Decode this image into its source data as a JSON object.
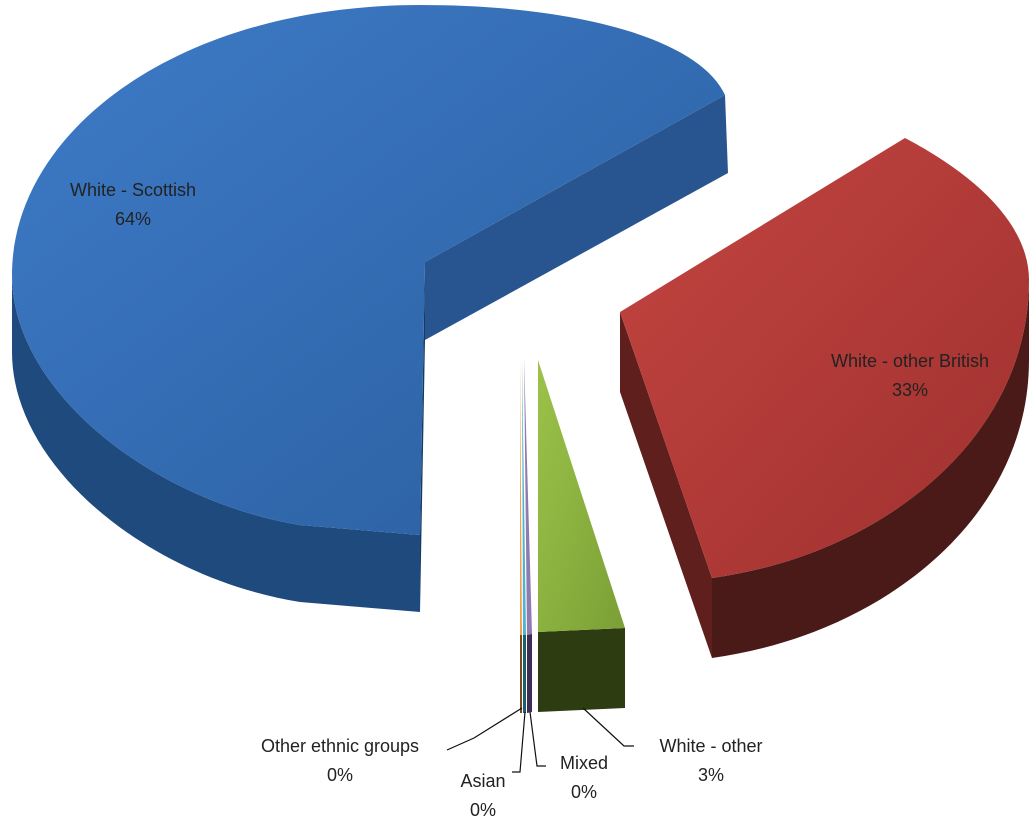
{
  "chart_data": {
    "type": "pie",
    "categories": [
      "White - Scottish",
      "White - other British",
      "White - other",
      "Mixed",
      "Asian",
      "Other ethnic groups"
    ],
    "values": [
      64,
      33,
      3,
      0,
      0,
      0
    ],
    "series": [
      {
        "values": [
          64,
          33,
          3,
          0,
          0,
          0
        ]
      }
    ],
    "slices": [
      {
        "name": "White - Scottish",
        "label": "White - Scottish",
        "value_label": "64%",
        "value": 64,
        "color": "#3068B1"
      },
      {
        "name": "White - other British",
        "label": "White - other British",
        "value_label": "33%",
        "value": 33,
        "color": "#B73A38"
      },
      {
        "name": "White - other",
        "label": "White - other",
        "value_label": "3%",
        "value": 3,
        "color": "#8BAF3F"
      },
      {
        "name": "Mixed",
        "label": "Mixed",
        "value_label": "0%",
        "value": 0,
        "color": "#6B4E8E"
      },
      {
        "name": "Asian",
        "label": "Asian",
        "value_label": "0%",
        "value": 0,
        "color": "#2E9BB5"
      },
      {
        "name": "Other ethnic groups",
        "label": "Other ethnic groups",
        "value_label": "0%",
        "value": 0,
        "color": "#E08A2E"
      }
    ],
    "title": "",
    "style": "3d-exploded-pie",
    "legend": "none"
  }
}
